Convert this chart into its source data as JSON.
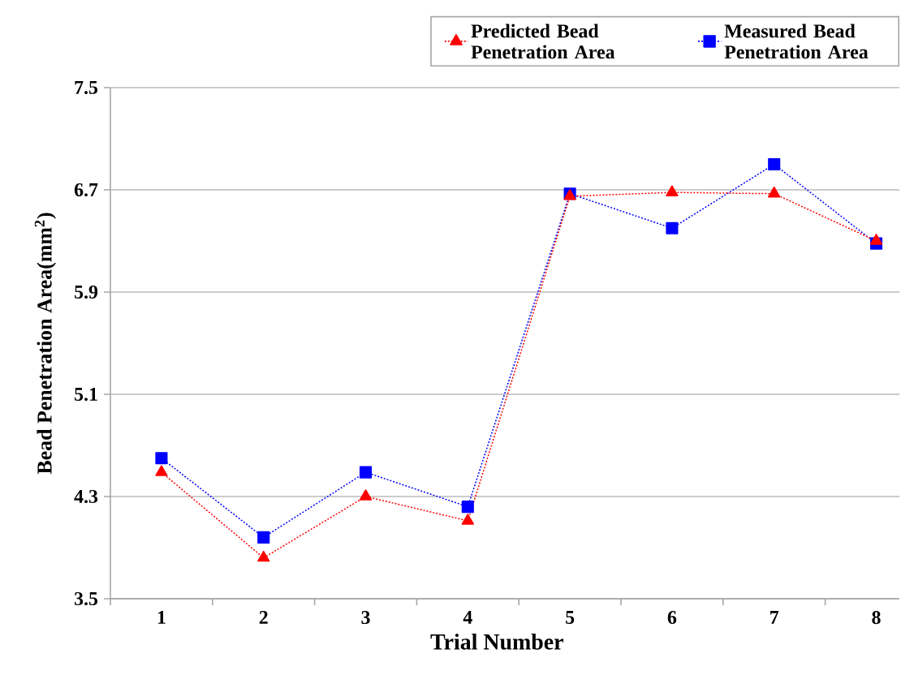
{
  "chart_data": {
    "type": "line",
    "xlabel": "Trial Number",
    "ylabel": "Bead Penetration Area(mm$^{2}$)",
    "categories": [
      "1",
      "2",
      "3",
      "4",
      "5",
      "6",
      "7",
      "8"
    ],
    "series": [
      {
        "name": "Predicted Bead Penetration Area",
        "color": "#ff0000",
        "marker": "triangle",
        "values": [
          4.49,
          3.82,
          4.3,
          4.11,
          6.65,
          6.68,
          6.67,
          6.3
        ]
      },
      {
        "name": "Measured Bead Penetration Area",
        "color": "#0000ff",
        "marker": "square",
        "values": [
          4.6,
          3.98,
          4.49,
          4.22,
          6.67,
          6.4,
          6.9,
          6.28
        ]
      }
    ],
    "ylim": [
      3.5,
      7.5
    ],
    "yticks": [
      3.5,
      4.3,
      5.1,
      5.9,
      6.7,
      7.5
    ],
    "grid": "y",
    "legend": "top right",
    "line_style": "dotted"
  }
}
